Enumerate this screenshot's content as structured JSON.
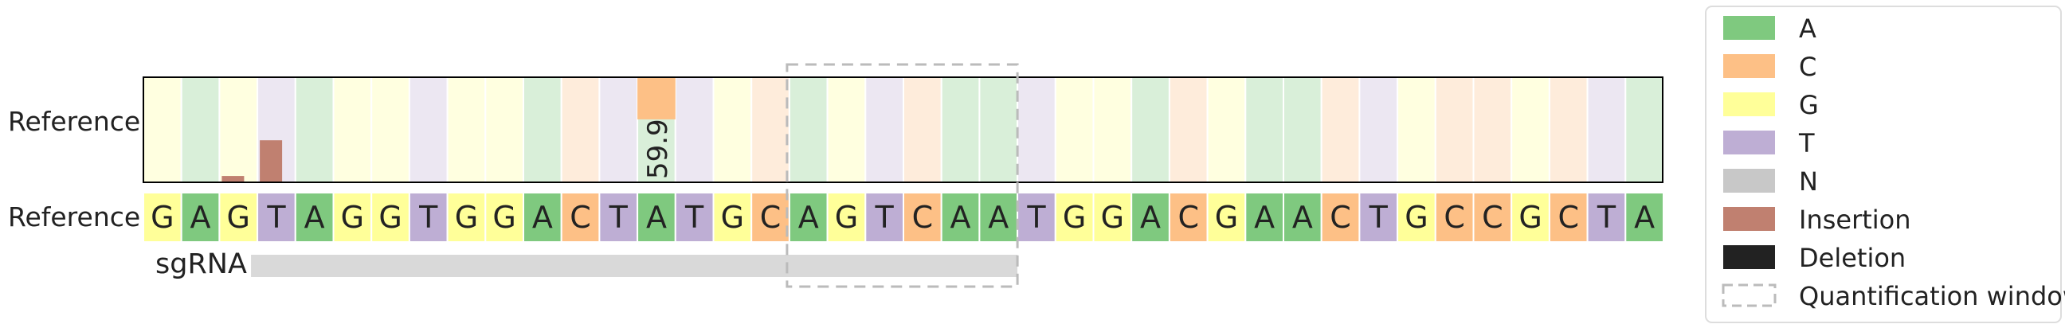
{
  "chart_data": {
    "type": "heatmap",
    "row_labels": {
      "top": "Reference",
      "bottom": "Reference"
    },
    "sequence": [
      "G",
      "A",
      "G",
      "T",
      "A",
      "G",
      "G",
      "T",
      "G",
      "G",
      "A",
      "C",
      "T",
      "A",
      "T",
      "G",
      "C",
      "A",
      "G",
      "T",
      "C",
      "A",
      "A",
      "T",
      "G",
      "G",
      "A",
      "C",
      "G",
      "A",
      "A",
      "C",
      "T",
      "G",
      "C",
      "C",
      "G",
      "C",
      "T",
      "A"
    ],
    "sgrna_label": "sgRNA",
    "sgrna_span": {
      "start_index": 3,
      "end_index": 22
    },
    "quantification_window": {
      "start_index": 17,
      "end_index": 22
    },
    "substitution_bar": {
      "index": 13,
      "base": "C",
      "value": 59.9,
      "label": "59.9"
    },
    "insertion_bars": [
      {
        "index": 2,
        "fraction": 0.06
      },
      {
        "index": 3,
        "fraction": 0.4
      }
    ],
    "legend": [
      {
        "key": "A",
        "label": "A",
        "color": "#7fc97f"
      },
      {
        "key": "C",
        "label": "C",
        "color": "#fdc086"
      },
      {
        "key": "G",
        "label": "G",
        "color": "#ffff99"
      },
      {
        "key": "T",
        "label": "T",
        "color": "#beaed4"
      },
      {
        "key": "N",
        "label": "N",
        "color": "#c8c8c8"
      },
      {
        "key": "Insertion",
        "label": "Insertion",
        "color": "#c08070"
      },
      {
        "key": "Deletion",
        "label": "Deletion",
        "color": "#222222"
      },
      {
        "key": "Window",
        "label": "Quantification window",
        "color": "#bbbbbb",
        "style": "dashed"
      }
    ],
    "colors": {
      "A": "#7fc97f",
      "C": "#fdc086",
      "G": "#ffff99",
      "T": "#beaed4",
      "N": "#c8c8c8",
      "insertion": "#c08070",
      "sgrna_bar": "#d9d9d9",
      "window": "#bbbbbb"
    }
  }
}
